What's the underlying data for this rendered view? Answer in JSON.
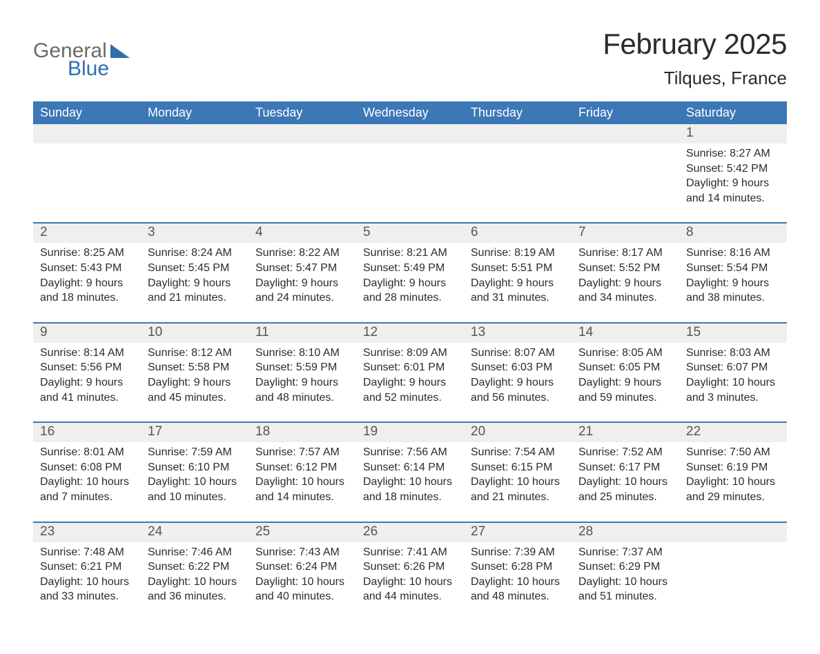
{
  "logo": {
    "line1": "General",
    "line2": "Blue"
  },
  "title": "February 2025",
  "location": "Tilques, France",
  "colors": {
    "header_bg": "#3b78b5",
    "header_text": "#ffffff",
    "daynum_bg": "#efefef",
    "daynum_border": "#3b78b5",
    "body_text": "#2b2b2b",
    "logo_blue": "#2f6fb0",
    "logo_gray": "#6a6a6a",
    "background": "#ffffff"
  },
  "style": {
    "type": "table",
    "columns": 7,
    "month_title_fontsize": 42,
    "location_fontsize": 26,
    "header_fontsize": 18,
    "daynum_fontsize": 19,
    "cell_fontsize": 16,
    "logo_fontsize": 30
  },
  "weekdays": [
    "Sunday",
    "Monday",
    "Tuesday",
    "Wednesday",
    "Thursday",
    "Friday",
    "Saturday"
  ],
  "weeks": [
    [
      null,
      null,
      null,
      null,
      null,
      null,
      {
        "day": "1",
        "sunrise": "Sunrise: 8:27 AM",
        "sunset": "Sunset: 5:42 PM",
        "day1": "Daylight: 9 hours",
        "day2": "and 14 minutes."
      }
    ],
    [
      {
        "day": "2",
        "sunrise": "Sunrise: 8:25 AM",
        "sunset": "Sunset: 5:43 PM",
        "day1": "Daylight: 9 hours",
        "day2": "and 18 minutes."
      },
      {
        "day": "3",
        "sunrise": "Sunrise: 8:24 AM",
        "sunset": "Sunset: 5:45 PM",
        "day1": "Daylight: 9 hours",
        "day2": "and 21 minutes."
      },
      {
        "day": "4",
        "sunrise": "Sunrise: 8:22 AM",
        "sunset": "Sunset: 5:47 PM",
        "day1": "Daylight: 9 hours",
        "day2": "and 24 minutes."
      },
      {
        "day": "5",
        "sunrise": "Sunrise: 8:21 AM",
        "sunset": "Sunset: 5:49 PM",
        "day1": "Daylight: 9 hours",
        "day2": "and 28 minutes."
      },
      {
        "day": "6",
        "sunrise": "Sunrise: 8:19 AM",
        "sunset": "Sunset: 5:51 PM",
        "day1": "Daylight: 9 hours",
        "day2": "and 31 minutes."
      },
      {
        "day": "7",
        "sunrise": "Sunrise: 8:17 AM",
        "sunset": "Sunset: 5:52 PM",
        "day1": "Daylight: 9 hours",
        "day2": "and 34 minutes."
      },
      {
        "day": "8",
        "sunrise": "Sunrise: 8:16 AM",
        "sunset": "Sunset: 5:54 PM",
        "day1": "Daylight: 9 hours",
        "day2": "and 38 minutes."
      }
    ],
    [
      {
        "day": "9",
        "sunrise": "Sunrise: 8:14 AM",
        "sunset": "Sunset: 5:56 PM",
        "day1": "Daylight: 9 hours",
        "day2": "and 41 minutes."
      },
      {
        "day": "10",
        "sunrise": "Sunrise: 8:12 AM",
        "sunset": "Sunset: 5:58 PM",
        "day1": "Daylight: 9 hours",
        "day2": "and 45 minutes."
      },
      {
        "day": "11",
        "sunrise": "Sunrise: 8:10 AM",
        "sunset": "Sunset: 5:59 PM",
        "day1": "Daylight: 9 hours",
        "day2": "and 48 minutes."
      },
      {
        "day": "12",
        "sunrise": "Sunrise: 8:09 AM",
        "sunset": "Sunset: 6:01 PM",
        "day1": "Daylight: 9 hours",
        "day2": "and 52 minutes."
      },
      {
        "day": "13",
        "sunrise": "Sunrise: 8:07 AM",
        "sunset": "Sunset: 6:03 PM",
        "day1": "Daylight: 9 hours",
        "day2": "and 56 minutes."
      },
      {
        "day": "14",
        "sunrise": "Sunrise: 8:05 AM",
        "sunset": "Sunset: 6:05 PM",
        "day1": "Daylight: 9 hours",
        "day2": "and 59 minutes."
      },
      {
        "day": "15",
        "sunrise": "Sunrise: 8:03 AM",
        "sunset": "Sunset: 6:07 PM",
        "day1": "Daylight: 10 hours",
        "day2": "and 3 minutes."
      }
    ],
    [
      {
        "day": "16",
        "sunrise": "Sunrise: 8:01 AM",
        "sunset": "Sunset: 6:08 PM",
        "day1": "Daylight: 10 hours",
        "day2": "and 7 minutes."
      },
      {
        "day": "17",
        "sunrise": "Sunrise: 7:59 AM",
        "sunset": "Sunset: 6:10 PM",
        "day1": "Daylight: 10 hours",
        "day2": "and 10 minutes."
      },
      {
        "day": "18",
        "sunrise": "Sunrise: 7:57 AM",
        "sunset": "Sunset: 6:12 PM",
        "day1": "Daylight: 10 hours",
        "day2": "and 14 minutes."
      },
      {
        "day": "19",
        "sunrise": "Sunrise: 7:56 AM",
        "sunset": "Sunset: 6:14 PM",
        "day1": "Daylight: 10 hours",
        "day2": "and 18 minutes."
      },
      {
        "day": "20",
        "sunrise": "Sunrise: 7:54 AM",
        "sunset": "Sunset: 6:15 PM",
        "day1": "Daylight: 10 hours",
        "day2": "and 21 minutes."
      },
      {
        "day": "21",
        "sunrise": "Sunrise: 7:52 AM",
        "sunset": "Sunset: 6:17 PM",
        "day1": "Daylight: 10 hours",
        "day2": "and 25 minutes."
      },
      {
        "day": "22",
        "sunrise": "Sunrise: 7:50 AM",
        "sunset": "Sunset: 6:19 PM",
        "day1": "Daylight: 10 hours",
        "day2": "and 29 minutes."
      }
    ],
    [
      {
        "day": "23",
        "sunrise": "Sunrise: 7:48 AM",
        "sunset": "Sunset: 6:21 PM",
        "day1": "Daylight: 10 hours",
        "day2": "and 33 minutes."
      },
      {
        "day": "24",
        "sunrise": "Sunrise: 7:46 AM",
        "sunset": "Sunset: 6:22 PM",
        "day1": "Daylight: 10 hours",
        "day2": "and 36 minutes."
      },
      {
        "day": "25",
        "sunrise": "Sunrise: 7:43 AM",
        "sunset": "Sunset: 6:24 PM",
        "day1": "Daylight: 10 hours",
        "day2": "and 40 minutes."
      },
      {
        "day": "26",
        "sunrise": "Sunrise: 7:41 AM",
        "sunset": "Sunset: 6:26 PM",
        "day1": "Daylight: 10 hours",
        "day2": "and 44 minutes."
      },
      {
        "day": "27",
        "sunrise": "Sunrise: 7:39 AM",
        "sunset": "Sunset: 6:28 PM",
        "day1": "Daylight: 10 hours",
        "day2": "and 48 minutes."
      },
      {
        "day": "28",
        "sunrise": "Sunrise: 7:37 AM",
        "sunset": "Sunset: 6:29 PM",
        "day1": "Daylight: 10 hours",
        "day2": "and 51 minutes."
      },
      null
    ]
  ]
}
